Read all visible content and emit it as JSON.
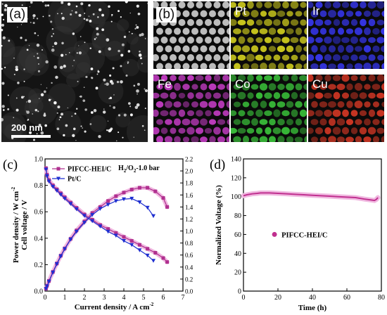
{
  "figure": {
    "panel_labels": {
      "a": "(a)",
      "b": "(b)",
      "c": "(c)",
      "d": "(d)"
    },
    "tem": {
      "scale_bar": "200 nm"
    },
    "eds_maps": [
      {
        "label": "",
        "color": "#dcdcdc"
      },
      {
        "label": "Pt",
        "color": "#e3e020"
      },
      {
        "label": "Ir",
        "color": "#3a3aff"
      },
      {
        "label": "Fe",
        "color": "#d040d0"
      },
      {
        "label": "Co",
        "color": "#3ed03e"
      },
      {
        "label": "Cu",
        "color": "#e03a26"
      }
    ]
  },
  "chart_data": [
    {
      "type": "line",
      "panel": "c",
      "annotation": "H2/O2-1.0 bar",
      "xlabel": "Current density / A cm",
      "xlabel_sup": "-2",
      "ylabel_left": "Cell voltage / V",
      "ylabel_right": "Power density / W cm",
      "ylabel_right_sup": "-2",
      "xlim": [
        0,
        7
      ],
      "ylim_left": [
        0.0,
        1.0
      ],
      "ylim_right": [
        0.0,
        2.2
      ],
      "x_ticks": [
        0,
        1,
        2,
        3,
        4,
        5,
        6,
        7
      ],
      "y_left_ticks": [
        "0.0",
        "0.2",
        "0.4",
        "0.6",
        "0.8",
        "1.0"
      ],
      "y_right_ticks": [
        "0.0",
        "0.2",
        "0.4",
        "0.6",
        "0.8",
        "1.0",
        "1.2",
        "1.4",
        "1.6",
        "1.8",
        "2.0",
        "2.2"
      ],
      "series": [
        {
          "name": "PIFCC-HEI/C",
          "color": "#b0308f",
          "marker": "square",
          "voltage": {
            "x": [
              0.05,
              0.1,
              0.2,
              0.4,
              0.6,
              0.8,
              1.0,
              1.3,
              1.6,
              2.0,
              2.4,
              2.8,
              3.2,
              3.6,
              4.0,
              4.4,
              4.8,
              5.2,
              5.6,
              6.0,
              6.2
            ],
            "y": [
              0.93,
              0.88,
              0.84,
              0.8,
              0.77,
              0.74,
              0.71,
              0.67,
              0.63,
              0.58,
              0.54,
              0.5,
              0.47,
              0.44,
              0.41,
              0.38,
              0.35,
              0.32,
              0.29,
              0.25,
              0.22
            ]
          },
          "power": {
            "x": [
              0.05,
              0.1,
              0.2,
              0.4,
              0.6,
              0.8,
              1.0,
              1.3,
              1.6,
              2.0,
              2.4,
              2.8,
              3.2,
              3.6,
              4.0,
              4.4,
              4.8,
              5.2,
              5.6,
              6.0,
              6.2
            ],
            "y": [
              0.04,
              0.09,
              0.17,
              0.32,
              0.46,
              0.59,
              0.71,
              0.87,
              1.01,
              1.16,
              1.3,
              1.4,
              1.5,
              1.58,
              1.64,
              1.69,
              1.72,
              1.72,
              1.66,
              1.55,
              1.4
            ]
          }
        },
        {
          "name": "Pt/C",
          "color": "#1f2fd0",
          "marker": "triangle-down",
          "voltage": {
            "x": [
              0.05,
              0.1,
              0.2,
              0.4,
              0.6,
              0.8,
              1.0,
              1.3,
              1.6,
              2.0,
              2.4,
              2.8,
              3.2,
              3.6,
              4.0,
              4.4,
              4.8,
              5.2,
              5.5
            ],
            "y": [
              0.92,
              0.87,
              0.83,
              0.79,
              0.76,
              0.73,
              0.7,
              0.66,
              0.62,
              0.57,
              0.53,
              0.49,
              0.45,
              0.42,
              0.38,
              0.35,
              0.31,
              0.27,
              0.23
            ]
          },
          "power": {
            "x": [
              0.05,
              0.1,
              0.2,
              0.4,
              0.6,
              0.8,
              1.0,
              1.3,
              1.6,
              2.0,
              2.4,
              2.8,
              3.2,
              3.6,
              4.0,
              4.4,
              4.8,
              5.2,
              5.5
            ],
            "y": [
              0.04,
              0.08,
              0.16,
              0.31,
              0.45,
              0.58,
              0.7,
              0.86,
              0.99,
              1.14,
              1.27,
              1.37,
              1.44,
              1.5,
              1.53,
              1.54,
              1.48,
              1.39,
              1.25
            ]
          }
        }
      ]
    },
    {
      "type": "line",
      "panel": "d",
      "xlabel": "Time (h)",
      "ylabel": "Normalized Voltage (%)",
      "xlim": [
        0,
        80
      ],
      "ylim": [
        0,
        140
      ],
      "x_ticks": [
        0,
        20,
        40,
        60,
        80
      ],
      "y_ticks": [
        0,
        20,
        40,
        60,
        80,
        100,
        120,
        140
      ],
      "series": [
        {
          "name": "PIFCC-HEI/C",
          "color": "#c0308f",
          "x": [
            0,
            2,
            5,
            8,
            10,
            15,
            20,
            25,
            30,
            35,
            40,
            45,
            50,
            55,
            60,
            65,
            70,
            74,
            76,
            77,
            78
          ],
          "y": [
            101,
            102,
            103,
            103.5,
            104,
            104,
            103.5,
            103,
            102.5,
            102,
            101.5,
            101,
            100.5,
            100,
            99.5,
            99,
            97.5,
            96.5,
            96,
            97,
            99
          ]
        }
      ]
    }
  ]
}
